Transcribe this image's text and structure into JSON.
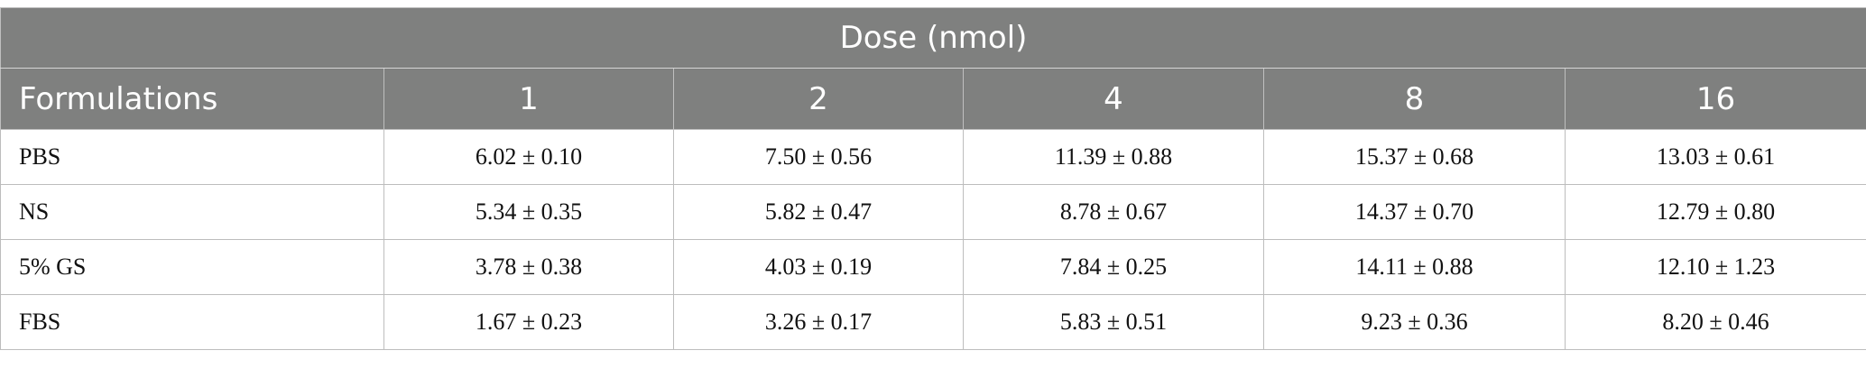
{
  "table": {
    "group_header": "Dose (nmol)",
    "columns": [
      "Formulations",
      "1",
      "2",
      "4",
      "8",
      "16"
    ],
    "rows": [
      {
        "label": "PBS",
        "values": [
          "6.02 ± 0.10",
          "7.50 ± 0.56",
          "11.39 ± 0.88",
          "15.37 ± 0.68",
          "13.03 ± 0.61"
        ]
      },
      {
        "label": "NS",
        "values": [
          "5.34 ± 0.35",
          "5.82 ± 0.47",
          "8.78 ± 0.67",
          "14.37 ± 0.70",
          "12.79 ± 0.80"
        ]
      },
      {
        "label": "5% GS",
        "values": [
          "3.78 ± 0.38",
          "4.03 ± 0.19",
          "7.84 ± 0.25",
          "14.11 ± 0.88",
          "12.10 ± 1.23"
        ]
      },
      {
        "label": "FBS",
        "values": [
          "1.67 ± 0.23",
          "3.26 ± 0.17",
          "5.83 ± 0.51",
          "9.23 ± 0.36",
          "8.20 ± 0.46"
        ]
      }
    ]
  },
  "colors": {
    "header_bg": "#7f807f",
    "header_text": "#ffffff",
    "border": "#bdbdbd"
  }
}
